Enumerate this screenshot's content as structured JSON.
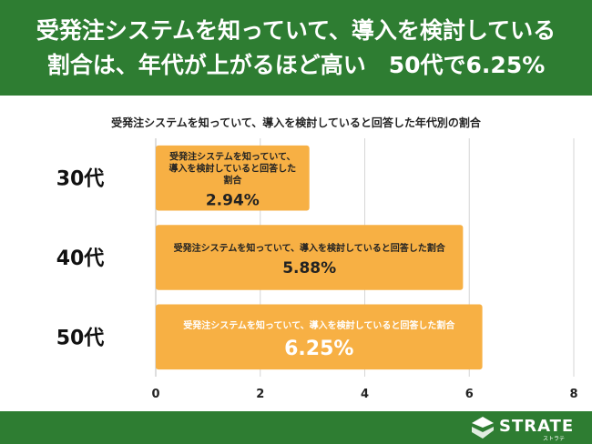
{
  "header": {
    "line1": "受発注システムを知っていて、導入を検討している",
    "line2": "割合は、年代が上がるほど高い　50代で6.25%"
  },
  "chart_data": {
    "type": "bar",
    "orientation": "horizontal",
    "title": "受発注システムを知っていて、導入を検討していると回答した年代別の割合",
    "categories": [
      "30代",
      "40代",
      "50代"
    ],
    "values": [
      2.94,
      5.88,
      6.25
    ],
    "value_labels": [
      "2.94%",
      "5.88%",
      "6.25%"
    ],
    "bar_label": "受発注システムを知っていて、導入を検討していると回答した割合",
    "xlim": [
      0,
      8
    ],
    "xticks": [
      "0",
      "2",
      "4",
      "6",
      "8"
    ],
    "grid": true,
    "bar_color": "#f7b044"
  },
  "footer": {
    "logo_text": "STRATE",
    "logo_sub": "ストラテ"
  },
  "colors": {
    "brand_green": "#2e7d32",
    "bar": "#f7b044"
  }
}
